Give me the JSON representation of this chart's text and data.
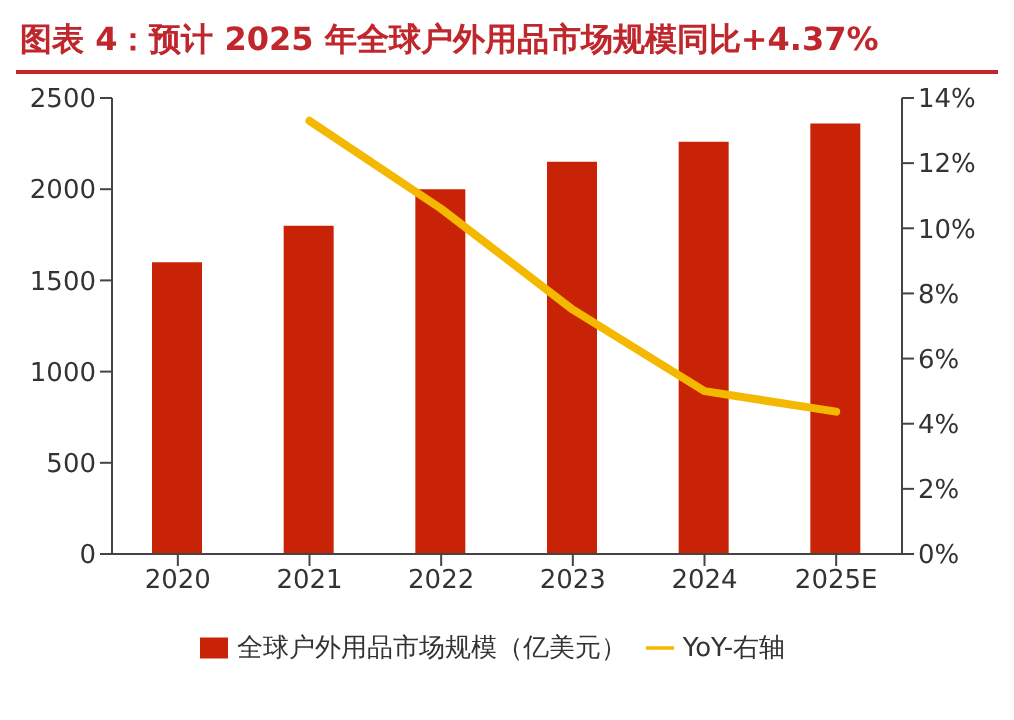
{
  "chart_data": {
    "type": "bar",
    "title": "图表 4：预计 2025 年全球户外用品市场规模同比+4.37%",
    "categories": [
      "2020",
      "2021",
      "2022",
      "2023",
      "2024",
      "2025E"
    ],
    "series": [
      {
        "name": "全球户外用品市场规模（亿美元）",
        "color": "#c82306",
        "values": [
          1600,
          1800,
          2000,
          2150,
          2260,
          2360
        ]
      },
      {
        "name": "YoY-右轴",
        "type": "line",
        "axis": "y2",
        "color": "#f5b800",
        "values": [
          null,
          13.3,
          10.6,
          7.5,
          5.0,
          4.37
        ]
      }
    ],
    "ylim": [
      0,
      2500
    ],
    "yticks": [
      0,
      500,
      1000,
      1500,
      2000,
      2500
    ],
    "y2lim": [
      0,
      14
    ],
    "y2ticks": [
      {
        "value": 0,
        "label": "0%"
      },
      {
        "value": 2,
        "label": "2%"
      },
      {
        "value": 4,
        "label": "4%"
      },
      {
        "value": 6,
        "label": "6%"
      },
      {
        "value": 8,
        "label": "8%"
      },
      {
        "value": 10,
        "label": "10%"
      },
      {
        "value": 12,
        "label": "12%"
      },
      {
        "value": 14,
        "label": "14%"
      }
    ],
    "grid": false,
    "legend": "bottom",
    "marker": "none"
  }
}
